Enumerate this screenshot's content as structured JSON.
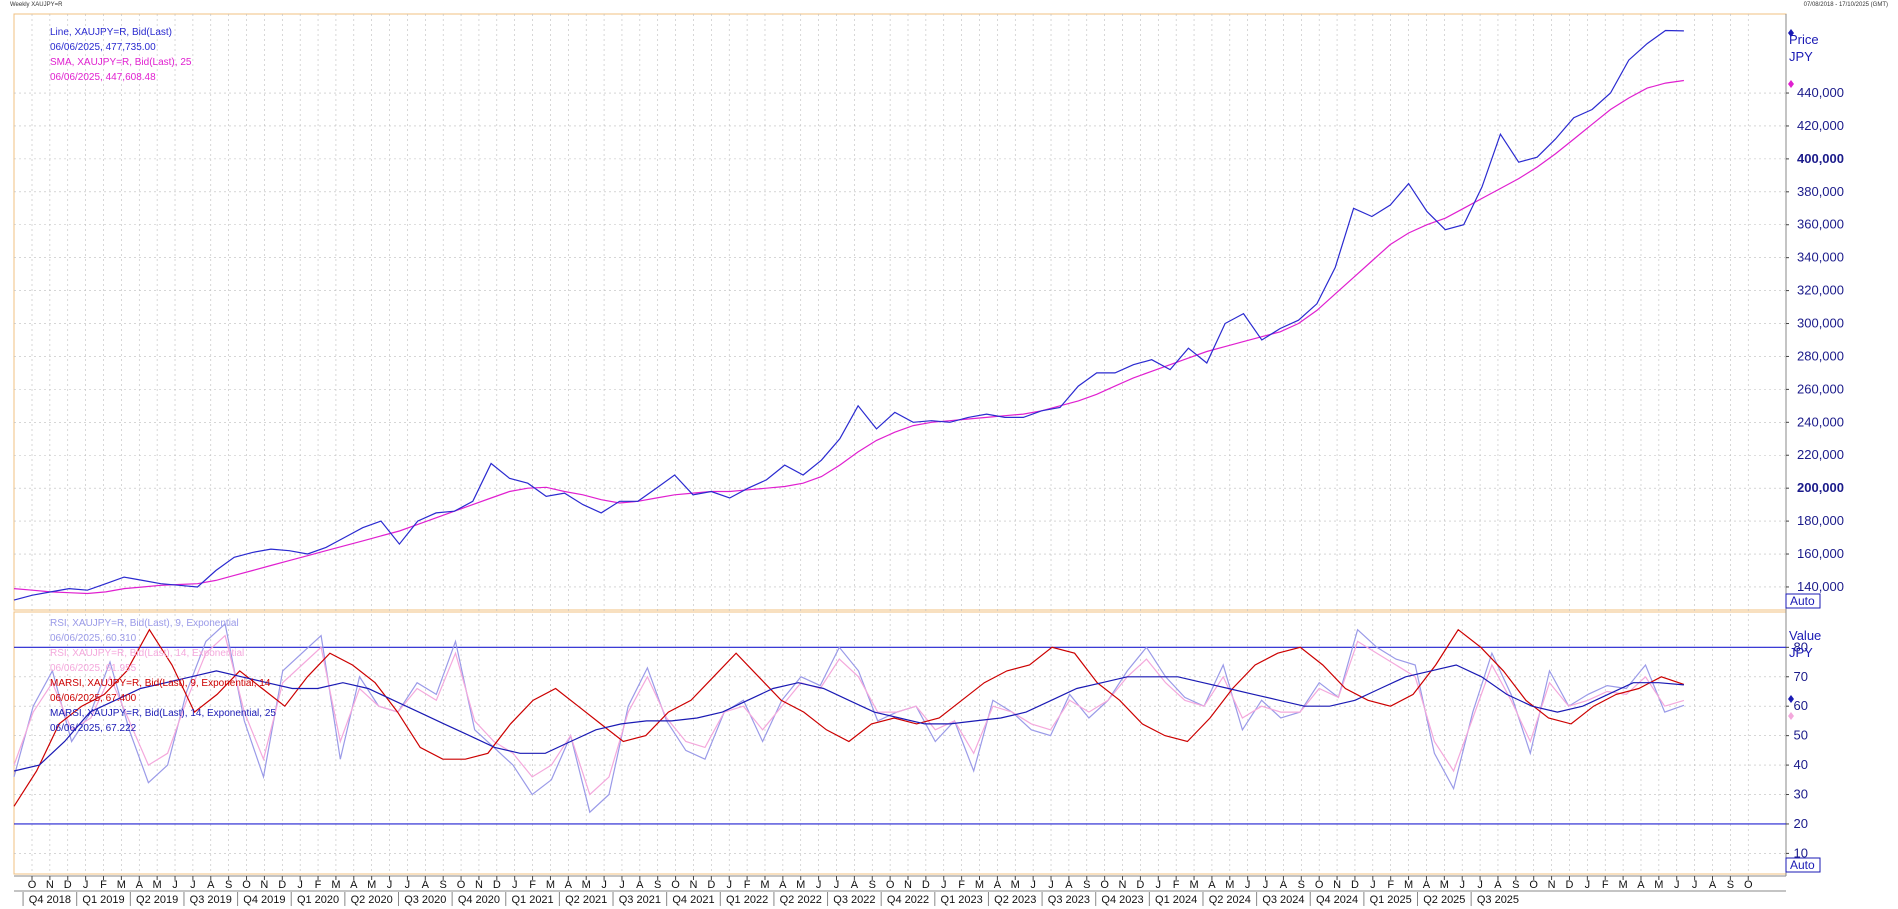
{
  "window": {
    "title": "Weekly XAUJPY=R",
    "date_range": "07/08/2018 - 17/10/2025 (GMT)"
  },
  "colors": {
    "price_line": "#2a2ad0",
    "sma_line": "#e020d0",
    "rsi9": "#9a9ae8",
    "rsi14": "#f4a8dc",
    "marsi9": "#cc0000",
    "marsi14": "#1a1ab4",
    "grid": "#bdbdbd",
    "panel_border": "#f0c080",
    "level_line": "#2020d0"
  },
  "price_panel": {
    "legend": [
      {
        "text": "Line, XAUJPY=R, Bid(Last)",
        "color": "#2a2ad0"
      },
      {
        "text": "06/06/2025, 477,735.00",
        "color": "#2a2ad0"
      },
      {
        "text": "SMA, XAUJPY=R, Bid(Last),  25",
        "color": "#e020d0"
      },
      {
        "text": "06/06/2025, 447,608.48",
        "color": "#e020d0"
      }
    ],
    "axis_title": "Price",
    "axis_unit": "JPY",
    "auto_label": "Auto",
    "ticks": [
      "140,000",
      "160,000",
      "180,000",
      "200,000",
      "220,000",
      "240,000",
      "260,000",
      "280,000",
      "300,000",
      "320,000",
      "340,000",
      "360,000",
      "380,000",
      "400,000",
      "420,000",
      "440,000"
    ],
    "bold_ticks": [
      "200,000",
      "400,000"
    ]
  },
  "indicator_panel": {
    "legend": [
      {
        "text": "RSI, XAUJPY=R, Bid(Last),  9, Exponential",
        "color": "#9a9ae8"
      },
      {
        "text": "06/06/2025, 60.310",
        "color": "#9a9ae8"
      },
      {
        "text": "RSI, XAUJPY=R, Bid(Last),  14, Exponential",
        "color": "#f4a8dc"
      },
      {
        "text": "06/06/2025, 61.955",
        "color": "#f4a8dc"
      },
      {
        "text": "MARSI, XAUJPY=R, Bid(Last),  9, Exponential, 14",
        "color": "#cc0000"
      },
      {
        "text": "06/06/2025, 67.400",
        "color": "#cc0000"
      },
      {
        "text": "MARSI, XAUJPY=R, Bid(Last),  14, Exponential, 25",
        "color": "#1a1ab4"
      },
      {
        "text": "06/06/2025, 67.222",
        "color": "#1a1ab4"
      }
    ],
    "axis_title": "Value",
    "axis_unit": "JPY",
    "auto_label": "Auto",
    "ticks": [
      "10",
      "20",
      "30",
      "40",
      "50",
      "60",
      "70",
      "80"
    ]
  },
  "x_axis": {
    "months": [
      "O",
      "N",
      "D",
      "J",
      "F",
      "M",
      "A",
      "M",
      "J",
      "J",
      "A",
      "S",
      "O",
      "N",
      "D",
      "J",
      "F",
      "M",
      "A",
      "M",
      "J",
      "J",
      "A",
      "S",
      "O",
      "N",
      "D",
      "J",
      "F",
      "M",
      "A",
      "M",
      "J",
      "J",
      "A",
      "S",
      "O",
      "N",
      "D",
      "J",
      "F",
      "M",
      "A",
      "M",
      "J",
      "J",
      "A",
      "S",
      "O",
      "N",
      "D",
      "J",
      "F",
      "M",
      "A",
      "M",
      "J",
      "J",
      "A",
      "S",
      "O",
      "N",
      "D",
      "J",
      "F",
      "M",
      "A",
      "M",
      "J",
      "J",
      "A",
      "S",
      "O",
      "N",
      "D",
      "J",
      "F",
      "M",
      "A",
      "M",
      "J",
      "J",
      "A",
      "S",
      "O",
      "N",
      "D",
      "J",
      "F",
      "M",
      "A",
      "M",
      "J",
      "J",
      "A",
      "S",
      "O"
    ],
    "quarters": [
      "Q4 2018",
      "Q1 2019",
      "Q2 2019",
      "Q3 2019",
      "Q4 2019",
      "Q1 2020",
      "Q2 2020",
      "Q3 2020",
      "Q4 2020",
      "Q1 2021",
      "Q2 2021",
      "Q3 2021",
      "Q4 2021",
      "Q1 2022",
      "Q2 2022",
      "Q3 2022",
      "Q4 2022",
      "Q1 2023",
      "Q2 2023",
      "Q3 2023",
      "Q4 2023",
      "Q1 2024",
      "Q2 2024",
      "Q3 2024",
      "Q4 2024",
      "Q1 2025",
      "Q2 2025",
      "Q3 2025"
    ]
  },
  "chart_data": {
    "type": "line",
    "x_axis": "weekly, 2018-08 to 2025-06 (monthly approximation)",
    "price": {
      "ylim": [
        126000,
        488000
      ],
      "x_start": "2018-08",
      "series": [
        {
          "name": "Line, XAUJPY=R, Bid(Last)",
          "color": "#2a2ad0",
          "values": [
            132000,
            135000,
            137000,
            139000,
            138000,
            142000,
            146000,
            144000,
            142000,
            141000,
            140000,
            150000,
            158000,
            161000,
            163000,
            162000,
            160000,
            164000,
            170000,
            176000,
            180000,
            166000,
            180000,
            185000,
            186000,
            192000,
            215000,
            206000,
            203000,
            195000,
            197000,
            190000,
            185000,
            192000,
            192000,
            200000,
            208000,
            196000,
            198000,
            194000,
            200000,
            205000,
            214000,
            208000,
            217000,
            230000,
            250000,
            236000,
            246000,
            240000,
            241000,
            240000,
            243000,
            245000,
            243000,
            243000,
            247000,
            249000,
            262000,
            270000,
            270000,
            275000,
            278000,
            272000,
            285000,
            276000,
            300000,
            306000,
            290000,
            297000,
            302000,
            312000,
            334000,
            370000,
            365000,
            372000,
            385000,
            368000,
            357000,
            360000,
            383000,
            415000,
            398000,
            401000,
            412000,
            425000,
            430000,
            440000,
            460000,
            470000,
            478000,
            477735
          ]
        },
        {
          "name": "SMA, XAUJPY=R, Bid(Last),  25",
          "color": "#e020d0",
          "values": [
            139000,
            138000,
            137000,
            136500,
            136000,
            137000,
            139000,
            140000,
            141000,
            141500,
            142000,
            144000,
            147000,
            150000,
            153000,
            156000,
            159000,
            162000,
            165000,
            168000,
            171000,
            174000,
            178000,
            182000,
            186000,
            190000,
            194000,
            198000,
            200000,
            200500,
            198000,
            196000,
            193000,
            191000,
            192000,
            194000,
            196000,
            197000,
            198000,
            198000,
            199000,
            200000,
            201000,
            203000,
            207000,
            214000,
            222000,
            229000,
            234000,
            238000,
            240000,
            241000,
            242000,
            243000,
            244000,
            245000,
            247000,
            250000,
            253000,
            257000,
            262000,
            267000,
            271000,
            275000,
            279000,
            283000,
            286000,
            289000,
            292000,
            295000,
            300000,
            308000,
            318000,
            328000,
            338000,
            348000,
            355000,
            360000,
            364000,
            370000,
            376000,
            382000,
            388000,
            395000,
            403000,
            412000,
            421000,
            430000,
            437000,
            443000,
            446000,
            447608.48
          ]
        }
      ]
    },
    "indicator": {
      "ylim": [
        3,
        92
      ],
      "levels": [
        20,
        80
      ],
      "series": [
        {
          "name": "RSI, XAUJPY=R, Bid(Last),  9, Exponential",
          "color": "#9a9ae8",
          "values": [
            36,
            60,
            72,
            48,
            58,
            75,
            52,
            34,
            40,
            65,
            82,
            88,
            55,
            36,
            72,
            78,
            84,
            42,
            70,
            60,
            58,
            68,
            64,
            82,
            52,
            46,
            40,
            30,
            35,
            50,
            24,
            30,
            60,
            73,
            55,
            45,
            42,
            58,
            62,
            48,
            62,
            70,
            67,
            80,
            72,
            55,
            58,
            60,
            48,
            55,
            38,
            62,
            58,
            52,
            50,
            64,
            56,
            62,
            72,
            80,
            70,
            63,
            60,
            74,
            52,
            62,
            56,
            58,
            68,
            63,
            86,
            80,
            76,
            74,
            44,
            32,
            58,
            78,
            64,
            44,
            72,
            60,
            64,
            67,
            66,
            74,
            58,
            60.31
          ]
        },
        {
          "name": "RSI, XAUJPY=R, Bid(Last),  14, Exponential",
          "color": "#f4a8dc",
          "values": [
            40,
            58,
            68,
            52,
            56,
            70,
            55,
            40,
            44,
            62,
            78,
            84,
            58,
            42,
            68,
            74,
            80,
            48,
            66,
            60,
            58,
            66,
            62,
            78,
            55,
            48,
            44,
            36,
            40,
            50,
            30,
            36,
            58,
            70,
            56,
            48,
            46,
            58,
            60,
            52,
            60,
            68,
            66,
            76,
            70,
            58,
            58,
            60,
            52,
            55,
            44,
            60,
            58,
            54,
            52,
            62,
            58,
            62,
            70,
            76,
            68,
            62,
            60,
            70,
            56,
            60,
            58,
            58,
            66,
            63,
            82,
            78,
            74,
            70,
            48,
            38,
            56,
            74,
            62,
            48,
            68,
            60,
            62,
            65,
            64,
            70,
            60,
            61.955
          ]
        },
        {
          "name": "MARSI, XAUJPY=R, Bid(Last),  9, Exponential, 14",
          "color": "#cc0000",
          "values": [
            26,
            38,
            54,
            60,
            64,
            72,
            86,
            74,
            58,
            64,
            72,
            66,
            60,
            70,
            78,
            74,
            68,
            58,
            46,
            42,
            42,
            44,
            54,
            62,
            66,
            60,
            54,
            48,
            50,
            58,
            62,
            70,
            78,
            70,
            62,
            58,
            52,
            48,
            54,
            56,
            54,
            56,
            62,
            68,
            72,
            74,
            80,
            78,
            68,
            62,
            54,
            50,
            48,
            56,
            66,
            74,
            78,
            80,
            74,
            66,
            62,
            60,
            64,
            74,
            86,
            80,
            72,
            62,
            56,
            54,
            60,
            64,
            66,
            70,
            67.4
          ]
        },
        {
          "name": "MARSI, XAUJPY=R, Bid(Last),  14, Exponential, 25",
          "color": "#1a1ab4",
          "values": [
            38,
            40,
            48,
            58,
            62,
            66,
            68,
            70,
            72,
            70,
            68,
            66,
            66,
            68,
            66,
            62,
            58,
            54,
            50,
            46,
            44,
            44,
            48,
            52,
            54,
            55,
            55,
            56,
            58,
            62,
            66,
            68,
            66,
            62,
            58,
            56,
            54,
            54,
            55,
            56,
            58,
            62,
            66,
            68,
            70,
            70,
            70,
            68,
            66,
            64,
            62,
            60,
            60,
            62,
            66,
            70,
            72,
            74,
            70,
            64,
            60,
            58,
            60,
            64,
            68,
            68,
            67.222
          ]
        }
      ]
    }
  }
}
